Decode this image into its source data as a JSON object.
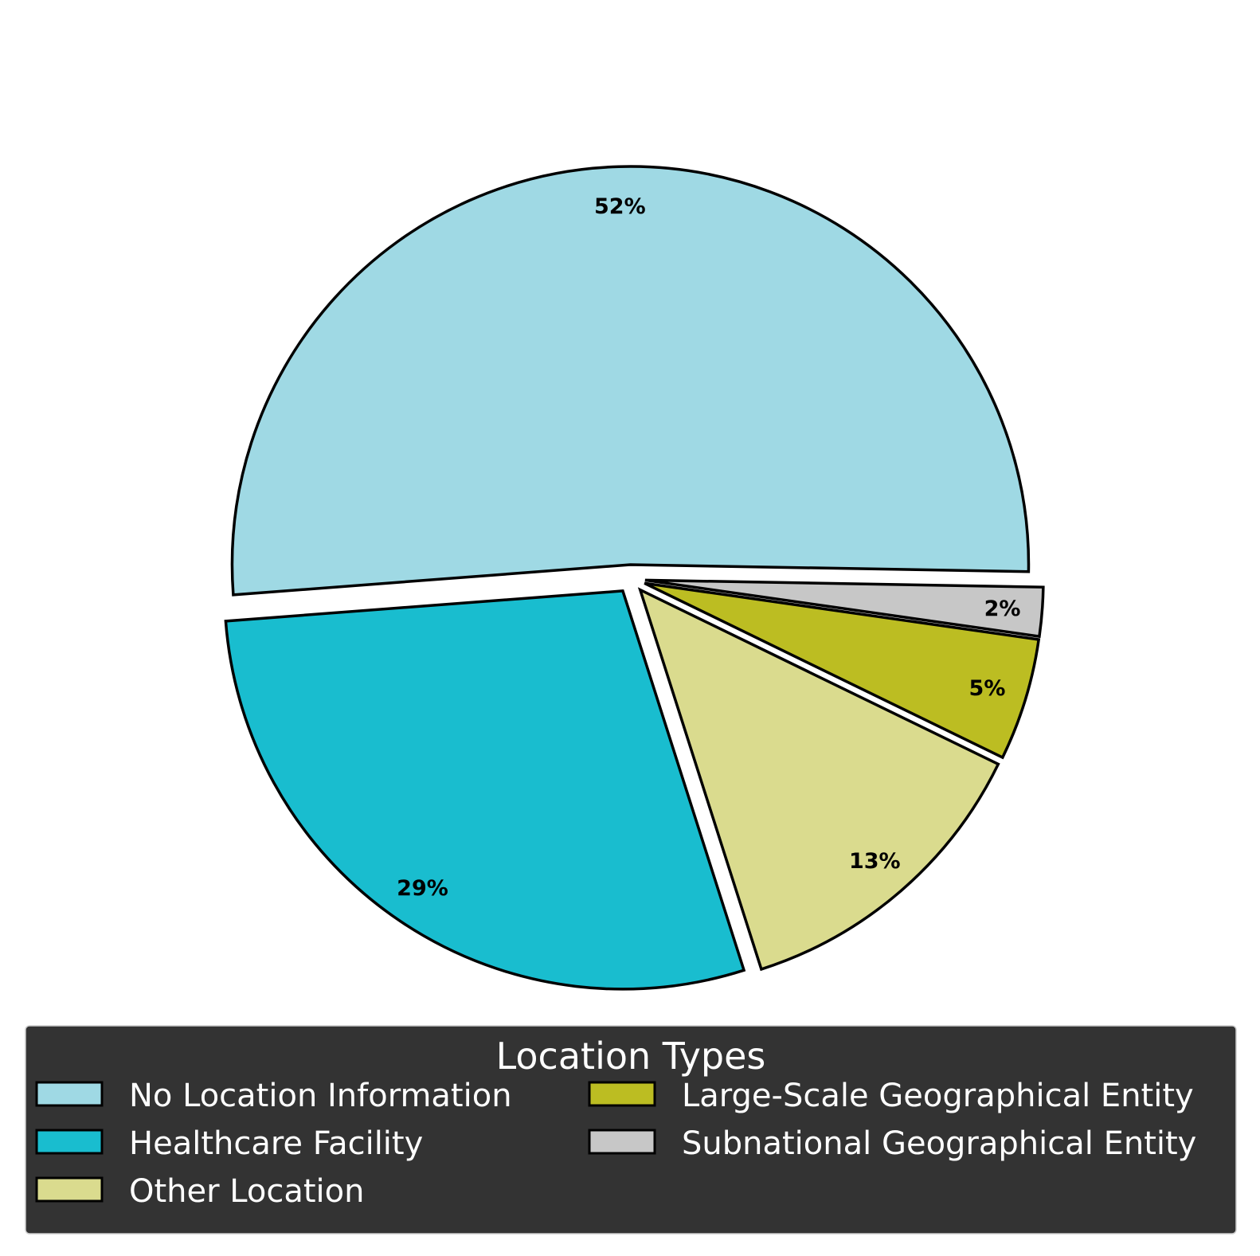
{
  "chart_data": {
    "type": "pie",
    "categories": [
      "No Location Information",
      "Healthcare Facility",
      "Other Location",
      "Large-Scale Geographical Entity",
      "Subnational Geographical Entity"
    ],
    "values": [
      52,
      29,
      13,
      5,
      2
    ],
    "labels": [
      "52%",
      "29%",
      "13%",
      "5%",
      "2%"
    ],
    "colors": [
      "#9fd9e4",
      "#19bdcf",
      "#dadb8e",
      "#bcbd22",
      "#c7c7c7"
    ],
    "start_angle_deg": -1,
    "direction": "counterclockwise",
    "exploded": true,
    "legend": {
      "title": "Location Types",
      "placement": "bottom",
      "columns": 2
    }
  }
}
